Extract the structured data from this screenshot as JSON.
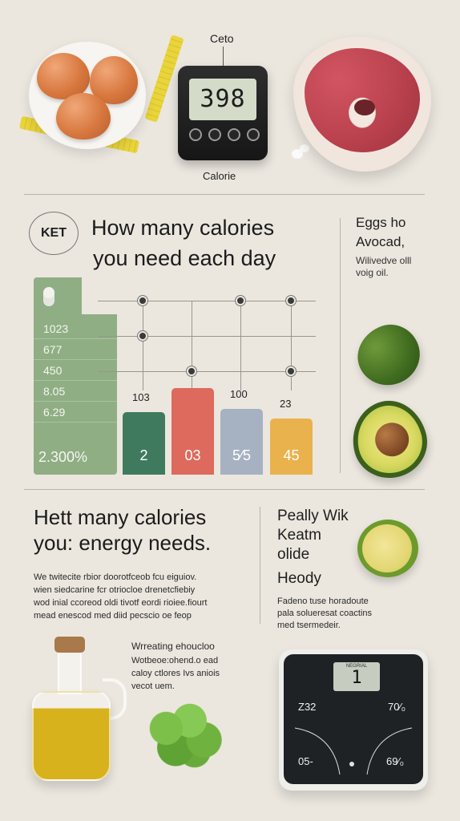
{
  "top": {
    "calculator_label": "Ceto",
    "calculator_display": "398",
    "calculator_caption": "Calorie"
  },
  "section1": {
    "badge": "KET",
    "title_line1": "How many calories",
    "title_line2": "you need each day",
    "side_title_line1": "Eggs ho",
    "side_title_line2": "Avocad,",
    "side_text_line1": "Wilivedve olll",
    "side_text_line2": "voig oil."
  },
  "chart_data": {
    "type": "bar",
    "scale_labels": [
      "1023",
      "677",
      "450",
      "8.05",
      "6.29"
    ],
    "total_label": "2.300%",
    "categories": [
      "103",
      "",
      "100",
      "23"
    ],
    "series": [
      {
        "values": [
          2,
          3,
          5,
          45
        ],
        "value_labels": [
          "2",
          "03",
          "5⁄5",
          "45"
        ],
        "colors": [
          "#3f7a5f",
          "#dd6a5c",
          "#a6b1c1",
          "#eab24c"
        ]
      }
    ]
  },
  "section2": {
    "title_line1": "Hett many calories",
    "title_line2": "you: energy needs.",
    "para_line1": "We twitecite rbior doorotfceob fcu eiguiov.",
    "para_line2": "wien siedcarine fcr otriocloe drenetcfiebiy",
    "para_line3": "wod inial ccoreod oldi tivotf eordi rioiee.fiourt",
    "para_line4": "mead enescod med diid pecscio oe feop",
    "sub_title": "Wrreating ehoucloo",
    "sub_line1": "Wotbeoe:ohend.o ead",
    "sub_line2": "caloy ctlores Ivs aniois",
    "sub_line3": "vecot uem.",
    "right_title_line1": "Peally Wik",
    "right_title_line2": "Keatm",
    "right_title_line3": "olide",
    "right_title_line4": "Heody",
    "right_text_line1": "Fadeno tuse horadoute",
    "right_text_line2": "pala solueresat coactins",
    "right_text_line3": "med tsermedeir."
  },
  "scale": {
    "screen_label": "NEGRIAL",
    "screen_value": "1",
    "top_left": "Z32",
    "top_right": "70⁄₀",
    "bottom_left": "05-",
    "bottom_right": "69⁄₀"
  }
}
